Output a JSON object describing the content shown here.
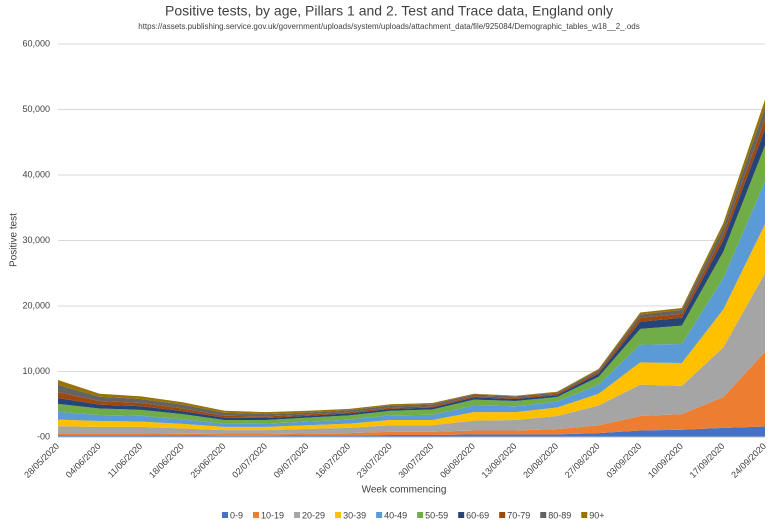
{
  "chart_data": {
    "type": "stacked-area",
    "title": "Positive tests, by age, Pillars 1 and 2. Test and Trace data, England only",
    "subtitle": "https://assets.publishing.service.gov.uk/government/uploads/system/uploads/attachment_data/file/925084/Demographic_tables_w18__2_.ods",
    "x_label": "Week commencing",
    "y_label": "Positive test",
    "categories": [
      "28/05/2020",
      "04/06/2020",
      "11/06/2020",
      "18/06/2020",
      "25/06/2020",
      "02/07/2020",
      "09/07/2020",
      "16/07/2020",
      "23/07/2020",
      "30/07/2020",
      "06/08/2020",
      "13/08/2020",
      "20/08/2020",
      "27/08/2020",
      "03/09/2020",
      "10/09/2020",
      "17/09/2020",
      "24/09/2020"
    ],
    "series": [
      {
        "name": "0-9",
        "color": "#4472c4",
        "values": [
          250,
          250,
          250,
          250,
          200,
          200,
          250,
          250,
          300,
          300,
          400,
          400,
          400,
          600,
          1000,
          1100,
          1400,
          1600
        ]
      },
      {
        "name": "10-19",
        "color": "#ed7d31",
        "values": [
          300,
          300,
          300,
          250,
          250,
          250,
          300,
          350,
          500,
          500,
          600,
          600,
          800,
          1200,
          2200,
          2400,
          4700,
          11400
        ]
      },
      {
        "name": "20-29",
        "color": "#a5a5a5",
        "values": [
          1100,
          1000,
          1000,
          800,
          600,
          600,
          700,
          800,
          1000,
          1000,
          1500,
          1600,
          2000,
          3000,
          4800,
          4300,
          7600,
          12000
        ]
      },
      {
        "name": "30-39",
        "color": "#ffc000",
        "values": [
          1000,
          900,
          800,
          700,
          500,
          500,
          550,
          650,
          800,
          800,
          1300,
          1200,
          1300,
          1800,
          3400,
          3500,
          5800,
          7500
        ]
      },
      {
        "name": "40-49",
        "color": "#5b9bd5",
        "values": [
          1200,
          900,
          900,
          700,
          500,
          500,
          550,
          600,
          700,
          800,
          1000,
          900,
          900,
          1400,
          2700,
          2900,
          4800,
          6500
        ]
      },
      {
        "name": "50-59",
        "color": "#70ad47",
        "values": [
          1200,
          1000,
          900,
          800,
          550,
          550,
          600,
          650,
          700,
          800,
          900,
          800,
          700,
          1200,
          2400,
          2800,
          4000,
          5500
        ]
      },
      {
        "name": "60-69",
        "color": "#264478",
        "values": [
          900,
          600,
          550,
          450,
          350,
          300,
          300,
          300,
          300,
          300,
          350,
          300,
          300,
          500,
          1100,
          1200,
          1800,
          2500
        ]
      },
      {
        "name": "70-79",
        "color": "#9e480e",
        "values": [
          900,
          550,
          500,
          400,
          300,
          250,
          200,
          200,
          200,
          200,
          200,
          200,
          200,
          300,
          600,
          600,
          900,
          1500
        ]
      },
      {
        "name": "80-89",
        "color": "#636363",
        "values": [
          1100,
          650,
          600,
          600,
          450,
          350,
          300,
          300,
          300,
          300,
          250,
          200,
          200,
          250,
          500,
          600,
          1000,
          1800
        ]
      },
      {
        "name": "90+",
        "color": "#997300",
        "values": [
          750,
          450,
          400,
          350,
          300,
          300,
          250,
          200,
          200,
          200,
          100,
          100,
          100,
          150,
          300,
          300,
          700,
          1200
        ]
      }
    ],
    "ylim": [
      0,
      60000
    ],
    "yticks": [
      {
        "value": 0,
        "label": "-00"
      },
      {
        "value": 10000,
        "label": "10,000"
      },
      {
        "value": 20000,
        "label": "20,000"
      },
      {
        "value": 30000,
        "label": "30,000"
      },
      {
        "value": 40000,
        "label": "40,000"
      },
      {
        "value": 50000,
        "label": "50,000"
      },
      {
        "value": 60000,
        "label": "60,000"
      }
    ],
    "grid": true,
    "legend": "bottom"
  }
}
